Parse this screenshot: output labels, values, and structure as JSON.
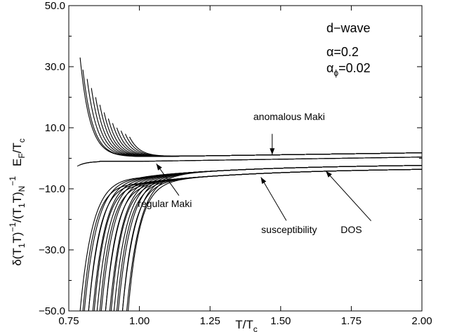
{
  "chart_data": {
    "type": "line",
    "title": "",
    "xlabel": {
      "main": "T/T",
      "sub": "c"
    },
    "ylabel": "δ(T₁T)⁻¹/(T₁T)ₙ⁻¹  E_F/T_c",
    "ylabel_parts": {
      "part1": "δ(T",
      "sub1": "1",
      "part2": "T)",
      "sup1": "−1",
      "part3": "/(T",
      "sub2": "1",
      "part4": "T)",
      "sub3": "N",
      "sup2": "−1",
      "part5": "E",
      "sub4": "F",
      "part6": "/T",
      "sub5": "c"
    },
    "xlim": [
      0.75,
      2.0
    ],
    "ylim": [
      -50.0,
      50.0
    ],
    "grid": false,
    "x_ticks": [
      {
        "value": 0.75,
        "label": "0.75"
      },
      {
        "value": 1.0,
        "label": "1.00"
      },
      {
        "value": 1.25,
        "label": "1.25"
      },
      {
        "value": 1.5,
        "label": "1.50"
      },
      {
        "value": 1.75,
        "label": "1.75"
      },
      {
        "value": 2.0,
        "label": "2.00"
      }
    ],
    "y_ticks": [
      {
        "value": -50.0,
        "label": "−50.0"
      },
      {
        "value": -30.0,
        "label": "−30.0"
      },
      {
        "value": -10.0,
        "label": "−10.0"
      },
      {
        "value": 10.0,
        "label": "10.0"
      },
      {
        "value": 30.0,
        "label": "30.0"
      },
      {
        "value": 50.0,
        "label": "50.0"
      }
    ],
    "parameters": {
      "line1": "d−wave",
      "line2": {
        "symbol": "α",
        "text": "=0.2"
      },
      "line3": {
        "symbol": "α",
        "sub": "ϕ",
        "text": "=0.02"
      }
    },
    "annotations": [
      {
        "label": "anomalous Maki",
        "text_at": [
          1.53,
          12.5
        ],
        "arrow_from": [
          1.47,
          8.0
        ],
        "arrow_to": [
          1.47,
          1.2
        ]
      },
      {
        "label": "regular Maki",
        "text_at": [
          1.09,
          -16.0
        ],
        "arrow_from": [
          1.14,
          -12.2
        ],
        "arrow_to": [
          1.06,
          -1.8
        ]
      },
      {
        "label": "susceptibility",
        "text_at": [
          1.53,
          -24.5
        ],
        "arrow_from": [
          1.52,
          -20.4
        ],
        "arrow_to": [
          1.43,
          -6.2
        ]
      },
      {
        "label": "DOS",
        "text_at": [
          1.75,
          -24.5
        ],
        "arrow_from": [
          1.82,
          -20.5
        ],
        "arrow_to": [
          1.66,
          -4.2
        ]
      }
    ],
    "families": {
      "anomalous_maki": {
        "onsets": [
          0.79,
          0.8,
          0.815,
          0.83,
          0.845,
          0.86,
          0.875,
          0.89,
          0.905,
          0.92,
          0.935,
          0.95,
          0.965
        ],
        "initial_values": [
          33.0,
          29.0,
          26.0,
          23.0,
          20.0,
          17.5,
          15.0,
          13.0,
          11.5,
          10.0,
          9.0,
          8.0,
          7.0
        ],
        "asymptote": 0.5,
        "at_x_max": 1.8
      },
      "regular_maki": {
        "start": [
          0.78,
          -2.6
        ],
        "plateau": -1.0,
        "at_x_max": 0.4
      },
      "susceptibility": {
        "onsets": [
          0.79,
          0.805,
          0.82,
          0.835,
          0.85,
          0.865,
          0.88,
          0.895,
          0.91,
          0.925,
          0.94,
          0.955
        ],
        "initial_value": -50.0,
        "near_one": -6.0,
        "at_x_max": -1.9
      },
      "dos": {
        "onsets": [
          0.8,
          0.82,
          0.84,
          0.86,
          0.88,
          0.9,
          0.92,
          0.94,
          0.96
        ],
        "initial_value": -50.0,
        "near_one": -8.0,
        "at_x_max": -3.1
      }
    }
  }
}
